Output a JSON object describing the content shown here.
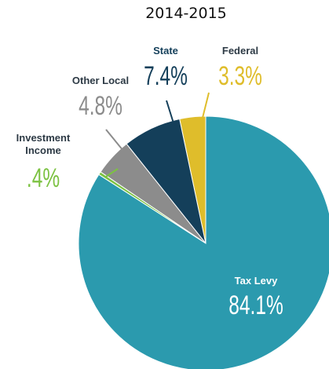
{
  "chart_data": {
    "type": "pie",
    "title": "2014-2015",
    "categories": [
      "Tax Levy",
      "Investment Income",
      "Other Local",
      "State",
      "Federal"
    ],
    "values": [
      84.1,
      0.4,
      4.8,
      7.4,
      3.3
    ],
    "value_labels": [
      "84.1%",
      ".4%",
      "4.8%",
      "7.4%",
      "3.3%"
    ],
    "colors": [
      "#2b9aae",
      "#7cc242",
      "#8c8c8c",
      "#143f5a",
      "#dfbd2b"
    ]
  }
}
